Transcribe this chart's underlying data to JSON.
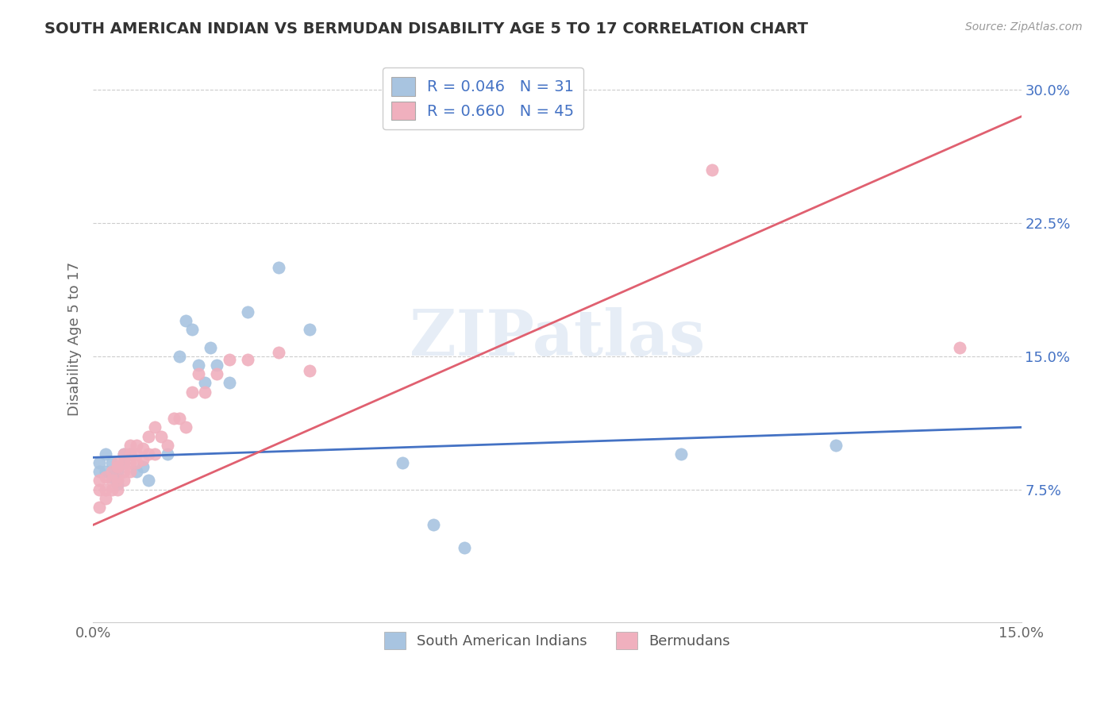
{
  "title": "SOUTH AMERICAN INDIAN VS BERMUDAN DISABILITY AGE 5 TO 17 CORRELATION CHART",
  "source": "Source: ZipAtlas.com",
  "ylabel": "Disability Age 5 to 17",
  "xlim": [
    0.0,
    0.15
  ],
  "ylim": [
    0.0,
    0.32
  ],
  "yticks": [
    0.075,
    0.15,
    0.225,
    0.3
  ],
  "ytick_labels": [
    "7.5%",
    "15.0%",
    "22.5%",
    "30.0%"
  ],
  "r_blue": 0.046,
  "n_blue": 31,
  "r_pink": 0.66,
  "n_pink": 45,
  "blue_color": "#a8c4e0",
  "pink_color": "#f0b0be",
  "blue_line_color": "#4472c4",
  "pink_line_color": "#e06070",
  "legend_label_blue": "South American Indians",
  "legend_label_pink": "Bermudans",
  "blue_scatter_x": [
    0.001,
    0.001,
    0.002,
    0.002,
    0.003,
    0.003,
    0.004,
    0.004,
    0.005,
    0.005,
    0.006,
    0.007,
    0.008,
    0.009,
    0.012,
    0.014,
    0.015,
    0.016,
    0.017,
    0.018,
    0.019,
    0.02,
    0.022,
    0.025,
    0.03,
    0.035,
    0.05,
    0.055,
    0.06,
    0.095,
    0.12
  ],
  "blue_scatter_y": [
    0.09,
    0.085,
    0.095,
    0.085,
    0.09,
    0.082,
    0.085,
    0.078,
    0.09,
    0.095,
    0.095,
    0.085,
    0.088,
    0.08,
    0.095,
    0.15,
    0.17,
    0.165,
    0.145,
    0.135,
    0.155,
    0.145,
    0.135,
    0.175,
    0.2,
    0.165,
    0.09,
    0.055,
    0.042,
    0.095,
    0.1
  ],
  "pink_scatter_x": [
    0.001,
    0.001,
    0.001,
    0.002,
    0.002,
    0.002,
    0.003,
    0.003,
    0.003,
    0.004,
    0.004,
    0.004,
    0.004,
    0.005,
    0.005,
    0.005,
    0.005,
    0.006,
    0.006,
    0.006,
    0.006,
    0.007,
    0.007,
    0.007,
    0.008,
    0.008,
    0.009,
    0.009,
    0.01,
    0.01,
    0.011,
    0.012,
    0.013,
    0.014,
    0.015,
    0.016,
    0.017,
    0.018,
    0.02,
    0.022,
    0.025,
    0.03,
    0.035,
    0.1,
    0.14
  ],
  "pink_scatter_y": [
    0.065,
    0.075,
    0.08,
    0.07,
    0.075,
    0.082,
    0.075,
    0.08,
    0.085,
    0.075,
    0.08,
    0.088,
    0.09,
    0.08,
    0.085,
    0.09,
    0.095,
    0.085,
    0.09,
    0.095,
    0.1,
    0.09,
    0.095,
    0.1,
    0.092,
    0.098,
    0.095,
    0.105,
    0.095,
    0.11,
    0.105,
    0.1,
    0.115,
    0.115,
    0.11,
    0.13,
    0.14,
    0.13,
    0.14,
    0.148,
    0.148,
    0.152,
    0.142,
    0.255,
    0.155
  ]
}
